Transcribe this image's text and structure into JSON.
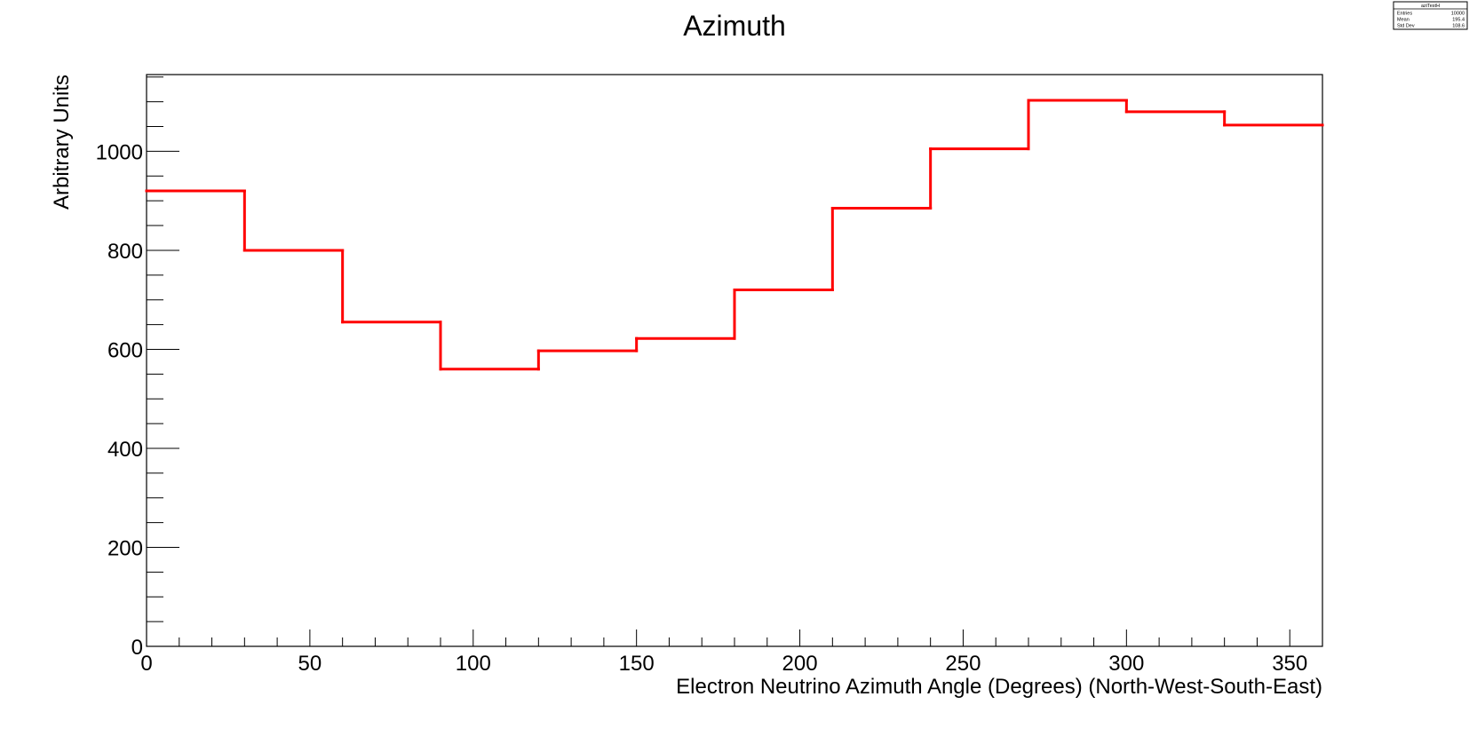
{
  "chart_data": {
    "type": "histogram",
    "title": "Azimuth",
    "xlabel": "Electron Neutrino Azimuth Angle (Degrees) (North-West-South-East)",
    "ylabel": "Arbitrary Units",
    "xlim": [
      0,
      360
    ],
    "ylim": [
      0,
      1155
    ],
    "bin_edges": [
      0,
      30,
      60,
      90,
      120,
      150,
      180,
      210,
      240,
      270,
      300,
      330,
      360
    ],
    "values": [
      920,
      800,
      655,
      560,
      597,
      622,
      720,
      885,
      1005,
      1103,
      1080,
      1053
    ],
    "x_ticks": [
      0,
      50,
      100,
      150,
      200,
      250,
      300,
      350
    ],
    "x_tick_labels": [
      "0",
      "50",
      "100",
      "150",
      "200",
      "250",
      "300",
      "350"
    ],
    "y_ticks": [
      0,
      200,
      400,
      600,
      800,
      1000
    ],
    "y_tick_labels": [
      "0",
      "200",
      "400",
      "600",
      "800",
      "1000"
    ],
    "line_color": "#ff0000",
    "grid": false,
    "stats_box": {
      "name": "aziTestH",
      "rows": [
        {
          "label": "Entries",
          "value": "10000"
        },
        {
          "label": "Mean",
          "value": "195.4"
        },
        {
          "label": "Std Dev",
          "value": "108.6"
        }
      ]
    }
  }
}
